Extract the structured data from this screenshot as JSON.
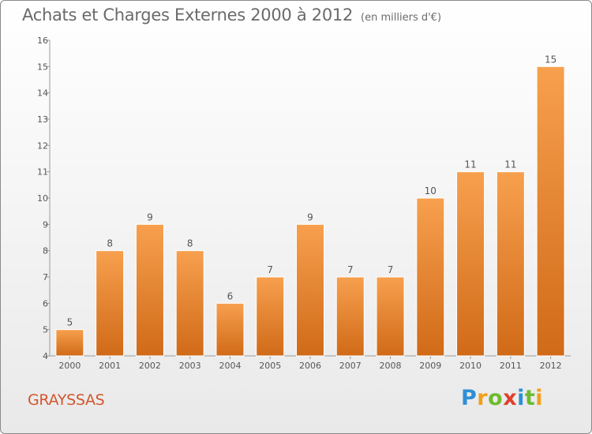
{
  "header": {
    "title": "Achats et Charges Externes 2000 à 2012",
    "unit": "(en milliers d'€)"
  },
  "footer": {
    "commune": "GRAYSSAS",
    "logo": "Proxiti"
  },
  "colors": {
    "bar_light": "#f7a04e",
    "bar_dark": "#d06a18",
    "commune": "#d2562e"
  },
  "chart_data": {
    "type": "bar",
    "title": "Achats et Charges Externes 2000 à 2012",
    "ylabel": "(en milliers d'€)",
    "xlabel": "",
    "categories": [
      "2000",
      "2001",
      "2002",
      "2003",
      "2004",
      "2005",
      "2006",
      "2007",
      "2008",
      "2009",
      "2010",
      "2011",
      "2012"
    ],
    "values": [
      5,
      8,
      9,
      8,
      6,
      7,
      9,
      7,
      7,
      10,
      11,
      11,
      15
    ],
    "ylim": [
      4,
      16
    ],
    "yticks": [
      4,
      5,
      6,
      7,
      8,
      9,
      10,
      11,
      12,
      13,
      14,
      15,
      16
    ],
    "grid": false,
    "legend": "none"
  }
}
